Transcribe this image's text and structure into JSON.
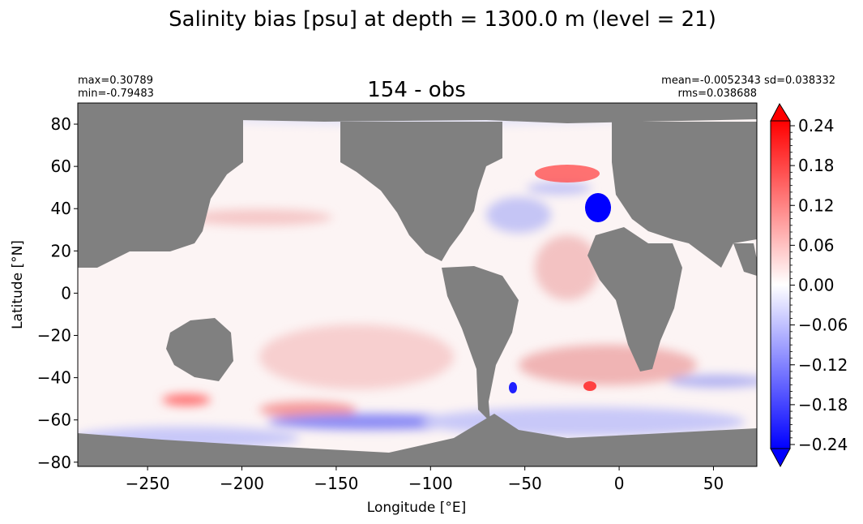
{
  "figure": {
    "suptitle": "Salinity bias [psu] at depth = 1300.0 m (level = 21)",
    "panel_title": "154 - obs",
    "stats_left": [
      "max=0.30789",
      "min=-0.79483"
    ],
    "stats_right": [
      "mean=-0.0052343 sd=0.038332",
      "rms=0.038688"
    ]
  },
  "colors": {
    "land": "#808080",
    "ocean_neutral": "#fdf3f3",
    "positive": "#ff0000",
    "negative": "#0000ff",
    "zero": "#ffffff"
  },
  "chart_data": {
    "type": "heatmap",
    "title": "154 - obs",
    "xlabel": "Longitude [°E]",
    "ylabel": "Latitude [°N]",
    "xlim": [
      -287,
      73
    ],
    "ylim": [
      -82,
      90
    ],
    "xticks": [
      -250,
      -200,
      -150,
      -100,
      -50,
      0,
      50
    ],
    "xticklabels": [
      "−250",
      "−200",
      "−150",
      "−100",
      "−50",
      "0",
      "50"
    ],
    "yticks": [
      80,
      60,
      40,
      20,
      0,
      -20,
      -40,
      -60,
      -80
    ],
    "yticklabels": [
      "80",
      "60",
      "40",
      "20",
      "0",
      "−20",
      "−40",
      "−60",
      "−80"
    ],
    "colorbar": {
      "vmin": -0.24,
      "vmax": 0.24,
      "ticks": [
        0.24,
        0.18,
        0.12,
        0.06,
        0.0,
        -0.06,
        -0.12,
        -0.18,
        -0.24
      ],
      "ticklabels": [
        "0.24",
        "0.18",
        "0.12",
        "0.06",
        "0.00",
        "−0.06",
        "−0.12",
        "−0.18",
        "−0.24"
      ],
      "extend": "both",
      "colormap": "bwr"
    },
    "grid": false,
    "features": [
      {
        "name": "north-atlantic-negative",
        "lon": -12,
        "lat": 41,
        "value": -0.24
      },
      {
        "name": "labrador-positive",
        "lon": -22,
        "lat": 60,
        "value": 0.2
      },
      {
        "name": "south-pacific-positive",
        "lon": -225,
        "lat": -49,
        "value": 0.2
      },
      {
        "name": "south-atlantic-positive",
        "lon": -40,
        "lat": -42,
        "value": 0.12
      },
      {
        "name": "southern-ocean-negative",
        "lon": -130,
        "lat": -55,
        "value": -0.12
      },
      {
        "name": "north-pacific-positive",
        "lon": -200,
        "lat": 33,
        "value": 0.06
      }
    ]
  }
}
